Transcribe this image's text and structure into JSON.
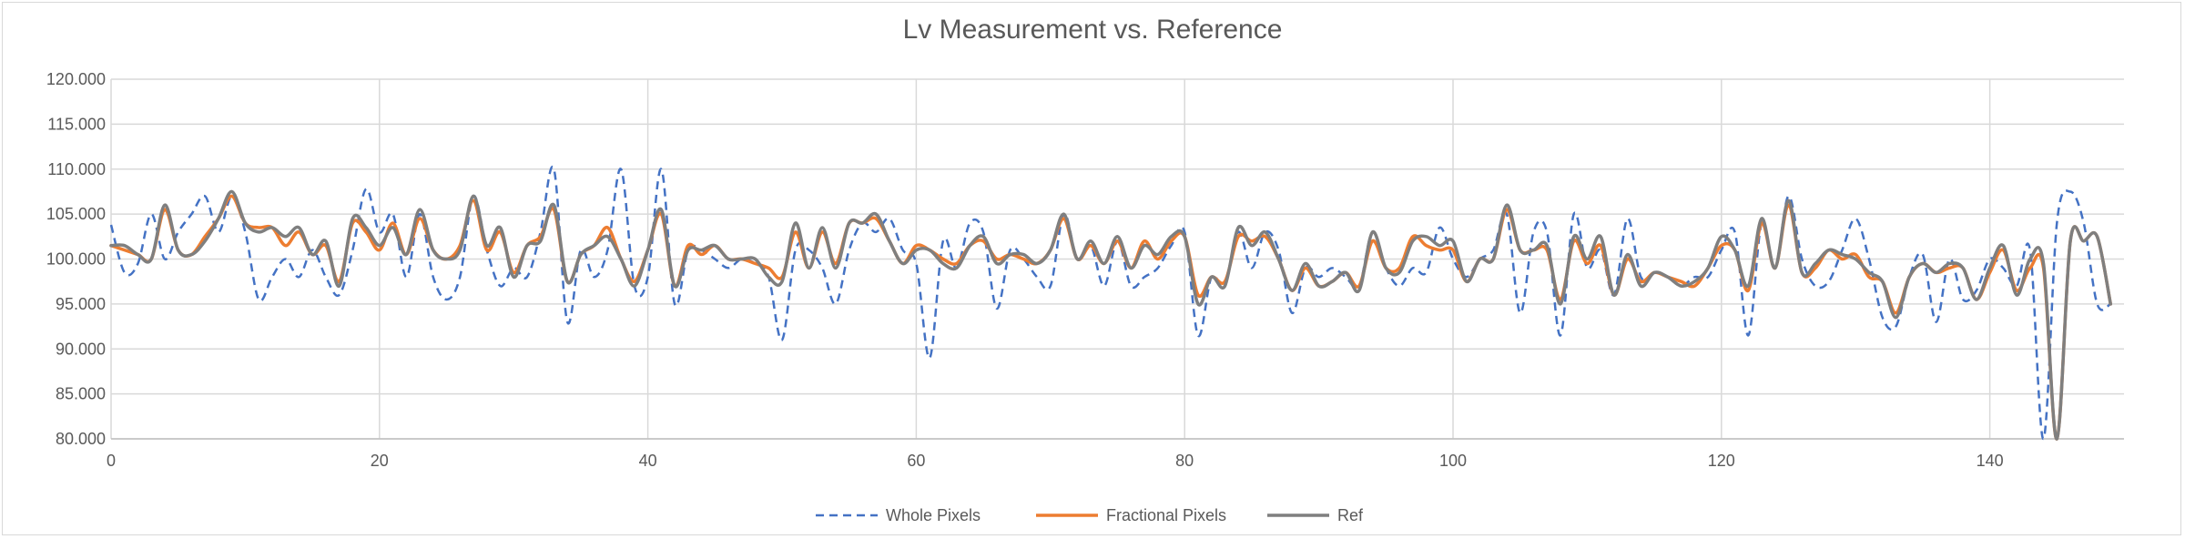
{
  "chart_data": {
    "type": "line",
    "title": "Lv Measurement vs. Reference",
    "xlabel": "",
    "ylabel": "",
    "xlim": [
      0,
      150
    ],
    "ylim": [
      80,
      120
    ],
    "x_ticks": [
      0,
      20,
      40,
      60,
      80,
      100,
      120,
      140
    ],
    "x_tick_labels": [
      "0",
      "20",
      "40",
      "60",
      "80",
      "100",
      "120",
      "140"
    ],
    "y_ticks": [
      80,
      85,
      90,
      95,
      100,
      105,
      110,
      115,
      120
    ],
    "y_tick_labels": [
      "80.000",
      "85.000",
      "90.000",
      "95.000",
      "100.000",
      "105.000",
      "110.000",
      "115.000",
      "120.000"
    ],
    "grid": "horizontal+vertical",
    "legend_position": "bottom",
    "x": [
      0,
      1,
      2,
      3,
      4,
      5,
      6,
      7,
      8,
      9,
      10,
      11,
      12,
      13,
      14,
      15,
      16,
      17,
      18,
      19,
      20,
      21,
      22,
      23,
      24,
      25,
      26,
      27,
      28,
      29,
      30,
      31,
      32,
      33,
      34,
      35,
      36,
      37,
      38,
      39,
      40,
      41,
      42,
      43,
      44,
      45,
      46,
      47,
      48,
      49,
      50,
      51,
      52,
      53,
      54,
      55,
      56,
      57,
      58,
      59,
      60,
      61,
      62,
      63,
      64,
      65,
      66,
      67,
      68,
      69,
      70,
      71,
      72,
      73,
      74,
      75,
      76,
      77,
      78,
      79,
      80,
      81,
      82,
      83,
      84,
      85,
      86,
      87,
      88,
      89,
      90,
      91,
      92,
      93,
      94,
      95,
      96,
      97,
      98,
      99,
      100,
      101,
      102,
      103,
      104,
      105,
      106,
      107,
      108,
      109,
      110,
      111,
      112,
      113,
      114,
      115,
      116,
      117,
      118,
      119,
      120,
      121,
      122,
      123,
      124,
      125,
      126,
      127,
      128,
      129,
      130,
      131,
      132,
      133,
      134,
      135,
      136,
      137,
      138,
      139,
      140,
      141,
      142,
      143,
      144,
      145,
      146,
      147,
      148,
      149
    ],
    "series": [
      {
        "name": "Whole Pixels",
        "color": "#4472c4",
        "dash": "dashed",
        "values": [
          103.8,
          98.5,
          99.5,
          105.0,
          100.0,
          103.0,
          105.0,
          107.0,
          103.0,
          107.0,
          103.0,
          95.5,
          98.0,
          100.0,
          98.0,
          101.0,
          98.0,
          96.0,
          101.0,
          107.8,
          103.0,
          105.0,
          98.0,
          105.0,
          98.0,
          95.5,
          98.0,
          107.0,
          101.0,
          97.0,
          99.0,
          98.0,
          103.0,
          110.0,
          93.0,
          101.0,
          98.0,
          101.0,
          110.0,
          97.0,
          98.0,
          110.0,
          95.0,
          101.0,
          101.0,
          100.0,
          99.0,
          100.0,
          99.5,
          98.0,
          91.0,
          101.0,
          101.0,
          99.0,
          95.0,
          101.0,
          104.0,
          103.0,
          104.5,
          101.0,
          99.5,
          89.0,
          102.0,
          99.0,
          104.0,
          103.0,
          94.5,
          101.0,
          100.0,
          98.0,
          97.0,
          105.0,
          100.0,
          101.5,
          97.0,
          102.0,
          97.0,
          98.0,
          99.0,
          101.5,
          103.0,
          91.5,
          98.0,
          97.0,
          103.0,
          99.0,
          103.0,
          101.0,
          94.0,
          99.0,
          98.0,
          99.0,
          98.0,
          97.0,
          103.0,
          99.0,
          97.0,
          99.0,
          98.5,
          103.5,
          100.0,
          98.0,
          100.0,
          101.0,
          105.0,
          94.0,
          103.0,
          103.0,
          91.5,
          105.0,
          99.0,
          101.0,
          96.0,
          104.5,
          98.0,
          98.5,
          98.0,
          97.0,
          98.0,
          98.0,
          101.0,
          103.0,
          91.5,
          104.0,
          99.0,
          107.0,
          100.0,
          97.0,
          97.5,
          101.0,
          104.5,
          100.0,
          93.5,
          92.5,
          98.0,
          100.5,
          93.0,
          100.0,
          95.5,
          96.5,
          100.0,
          99.0,
          97.0,
          101.0,
          80.0,
          104.0,
          107.5,
          104.0,
          95.0,
          95.0
        ]
      },
      {
        "name": "Fractional Pixels",
        "color": "#ed7d31",
        "dash": "solid",
        "values": [
          101.5,
          101.0,
          100.5,
          100.0,
          105.5,
          101.0,
          100.5,
          102.5,
          104.5,
          107.0,
          104.0,
          103.5,
          103.5,
          101.5,
          103.0,
          100.5,
          101.5,
          97.5,
          104.0,
          103.0,
          101.0,
          104.0,
          100.5,
          104.5,
          101.0,
          100.0,
          101.5,
          106.5,
          101.0,
          103.0,
          98.5,
          101.5,
          102.5,
          105.5,
          97.5,
          100.5,
          101.5,
          103.5,
          100.0,
          97.5,
          101.0,
          105.0,
          97.0,
          101.5,
          100.5,
          101.5,
          100.0,
          100.0,
          99.5,
          99.0,
          98.0,
          103.0,
          99.0,
          103.0,
          99.5,
          104.0,
          104.0,
          104.5,
          102.0,
          99.5,
          101.5,
          101.0,
          100.0,
          99.5,
          101.5,
          102.0,
          100.0,
          100.5,
          100.0,
          99.5,
          101.0,
          104.5,
          100.0,
          101.5,
          99.5,
          102.0,
          99.0,
          102.0,
          100.0,
          102.0,
          102.5,
          96.0,
          98.0,
          97.5,
          102.5,
          102.0,
          102.5,
          100.0,
          96.5,
          99.0,
          97.0,
          97.5,
          98.5,
          97.0,
          102.0,
          99.0,
          99.0,
          102.5,
          101.5,
          101.0,
          101.0,
          97.5,
          100.0,
          100.0,
          105.5,
          101.0,
          101.0,
          101.0,
          95.5,
          102.0,
          99.5,
          101.5,
          96.0,
          100.0,
          97.5,
          98.5,
          98.0,
          97.5,
          97.0,
          99.0,
          101.5,
          101.0,
          96.5,
          104.0,
          99.0,
          106.0,
          98.5,
          99.0,
          101.0,
          100.0,
          100.5,
          98.0,
          97.5,
          94.0,
          98.0,
          99.5,
          98.5,
          99.0,
          99.0,
          95.5,
          98.5,
          101.0,
          96.5,
          99.0,
          99.0,
          80.0,
          102.0,
          102.0,
          102.5,
          95.0
        ]
      },
      {
        "name": "Ref",
        "color": "#7f7f7f",
        "dash": "solid",
        "values": [
          101.5,
          101.5,
          100.5,
          100.0,
          106.0,
          101.0,
          100.5,
          102.0,
          104.5,
          107.5,
          104.0,
          103.0,
          103.5,
          102.5,
          103.5,
          100.5,
          102.0,
          97.0,
          104.5,
          103.5,
          101.5,
          103.5,
          100.5,
          105.5,
          101.0,
          100.0,
          101.0,
          107.0,
          101.5,
          103.5,
          98.0,
          101.5,
          102.0,
          106.0,
          97.5,
          100.5,
          101.5,
          102.5,
          100.0,
          97.0,
          101.0,
          105.5,
          97.0,
          101.0,
          101.0,
          101.5,
          100.0,
          100.0,
          100.0,
          98.0,
          97.5,
          104.0,
          99.0,
          103.5,
          99.0,
          104.0,
          104.0,
          105.0,
          102.0,
          99.5,
          101.0,
          101.0,
          99.5,
          99.0,
          101.5,
          102.5,
          99.5,
          100.5,
          100.5,
          99.5,
          101.0,
          105.0,
          100.0,
          102.0,
          99.5,
          102.5,
          99.0,
          101.5,
          100.5,
          102.5,
          102.5,
          95.0,
          98.0,
          97.0,
          103.5,
          101.5,
          103.0,
          100.0,
          96.5,
          99.5,
          97.0,
          97.5,
          98.5,
          96.5,
          103.0,
          99.0,
          98.5,
          102.0,
          102.5,
          101.5,
          102.0,
          97.5,
          100.0,
          100.0,
          106.0,
          101.0,
          101.0,
          101.5,
          95.0,
          102.5,
          100.0,
          102.5,
          96.0,
          100.5,
          97.0,
          98.5,
          98.0,
          97.0,
          97.5,
          99.0,
          102.5,
          101.0,
          97.0,
          104.5,
          99.0,
          106.5,
          98.5,
          99.5,
          101.0,
          100.5,
          100.0,
          98.5,
          97.5,
          93.5,
          98.0,
          99.5,
          98.5,
          99.5,
          99.0,
          95.5,
          99.0,
          101.5,
          96.0,
          100.0,
          99.5,
          80.0,
          102.0,
          102.0,
          102.5,
          95.0
        ]
      }
    ]
  }
}
